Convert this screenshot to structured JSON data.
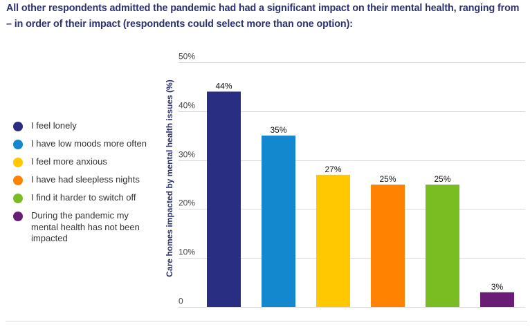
{
  "intro_text": "All other respondents admitted the pandemic had had a significant impact on their mental health, ranging from – in order of their impact (respondents could select more than one option):",
  "legend": {
    "items": [
      {
        "label": "I feel lonely",
        "color": "#2a2e82"
      },
      {
        "label": "I have low moods more often",
        "color": "#1388ce"
      },
      {
        "label": "I feel more anxious",
        "color": "#ffc800"
      },
      {
        "label": "I have had sleepless nights",
        "color": "#ff8200"
      },
      {
        "label": "I find it harder to switch off",
        "color": "#7abd22"
      },
      {
        "label": "During the pandemic my mental health has not been impacted",
        "color": "#6a1d77"
      }
    ]
  },
  "chart_data": {
    "type": "bar",
    "title": "",
    "xlabel": "",
    "ylabel": "Care homes impacted by mental health issues (%)",
    "ylim": [
      0,
      50
    ],
    "grid": true,
    "legend_position": "left",
    "yticks": [
      0,
      10,
      20,
      30,
      40,
      50
    ],
    "ytick_labels": [
      "0",
      "10%",
      "20%",
      "30%",
      "40%",
      "50%"
    ],
    "categories": [
      "I feel lonely",
      "I have low moods more often",
      "I feel more anxious",
      "I have had sleepless nights",
      "I find it harder to switch off",
      "During the pandemic my mental health has not been impacted"
    ],
    "values": [
      44,
      35,
      27,
      25,
      25,
      3
    ],
    "data_labels": [
      "44%",
      "35%",
      "27%",
      "25%",
      "25%",
      "3%"
    ],
    "colors": [
      "#2a2e82",
      "#1388ce",
      "#ffc800",
      "#ff8200",
      "#7abd22",
      "#6a1d77"
    ],
    "gridline_color": "#d9d9d9"
  }
}
